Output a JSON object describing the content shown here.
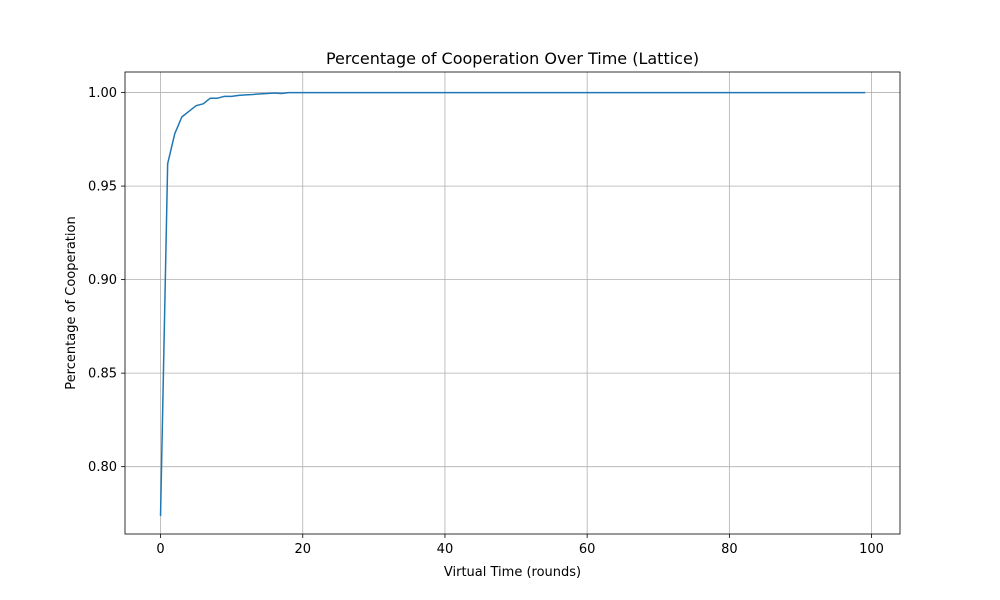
{
  "chart_data": {
    "type": "line",
    "title": "Percentage of Cooperation Over Time (Lattice)",
    "xlabel": "Virtual Time (rounds)",
    "ylabel": "Percentage of Cooperation",
    "xlim": [
      -5,
      104
    ],
    "ylim": [
      0.764,
      1.011
    ],
    "xticks": [
      0,
      20,
      40,
      60,
      80,
      100
    ],
    "xtick_labels": [
      "0",
      "20",
      "40",
      "60",
      "80",
      "100"
    ],
    "yticks": [
      0.8,
      0.85,
      0.9,
      0.95,
      1.0
    ],
    "ytick_labels": [
      "0.80",
      "0.85",
      "0.90",
      "0.95",
      "1.00"
    ],
    "grid": true,
    "series": [
      {
        "color": "#1f77b4",
        "x": [
          0,
          1,
          2,
          3,
          4,
          5,
          6,
          7,
          8,
          9,
          10,
          11,
          12,
          13,
          14,
          15,
          16,
          17,
          18,
          19,
          20,
          25,
          30,
          40,
          50,
          60,
          70,
          80,
          90,
          99
        ],
        "y": [
          0.774,
          0.962,
          0.978,
          0.987,
          0.99,
          0.993,
          0.994,
          0.997,
          0.997,
          0.998,
          0.998,
          0.9985,
          0.9988,
          0.999,
          0.9993,
          0.9995,
          0.9998,
          0.9995,
          1.0,
          1.0,
          1.0,
          1.0,
          1.0,
          1.0,
          1.0,
          1.0,
          1.0,
          1.0,
          1.0,
          1.0
        ]
      }
    ]
  }
}
